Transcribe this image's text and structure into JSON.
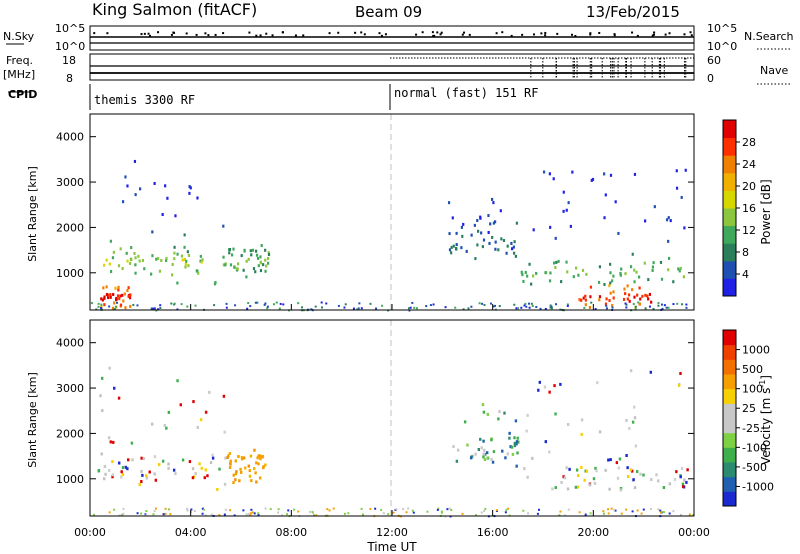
{
  "header": {
    "station": "King Salmon (fitACF)",
    "beam": "Beam 09",
    "date": "13/Feb/2015"
  },
  "top_panels": {
    "nsky_label": "N.Sky",
    "nsky_ticks": [
      "10^5",
      "10^0"
    ],
    "nsearch_label": "N.Search",
    "nsearch_ticks": [
      "10^5",
      "10^0"
    ],
    "freq_label": "Freq.",
    "freq_unit": "[MHz]",
    "freq_ticks": [
      "18",
      "8"
    ],
    "nave_label": "Nave",
    "nave_ticks": [
      "60",
      "0"
    ],
    "cpid_label": "CPID",
    "cpid_segments": [
      {
        "label": "themis 3300 RF",
        "start_hour": 0
      },
      {
        "label": "normal (fast) 151 RF",
        "start_hour": 12
      }
    ]
  },
  "chart_data": [
    {
      "type": "heatmap",
      "title": "Power [dB]",
      "xlabel": "Time UT",
      "ylabel": "Slant Range [km]",
      "xlim": [
        0,
        24
      ],
      "ylim": [
        180,
        4500
      ],
      "xticks": [
        "00:00",
        "04:00",
        "08:00",
        "12:00",
        "16:00",
        "20:00",
        "00:00"
      ],
      "yticks": [
        1000,
        2000,
        3000,
        4000
      ],
      "colorbar": {
        "label": "Power [dB]",
        "ticks": [
          "28",
          "24",
          "20",
          "16",
          "12",
          "8",
          "4"
        ],
        "range": [
          0,
          30
        ],
        "colors": [
          "#2020e6",
          "#1f4fb0",
          "#2a7f5a",
          "#3fa85a",
          "#8cc63f",
          "#d7d700",
          "#f0b000",
          "#f08000",
          "#ff3000",
          "#e00000"
        ]
      },
      "regions": [
        {
          "t0": 0.3,
          "t1": 5.4,
          "r0": 750,
          "r1": 3500,
          "peak": 1250,
          "level": 14
        },
        {
          "t0": 5.3,
          "t1": 7.1,
          "r0": 900,
          "r1": 1700,
          "peak": 1300,
          "level": 12
        },
        {
          "t0": 17.1,
          "t1": 23.7,
          "r0": 750,
          "r1": 3500,
          "peak": 1050,
          "level": 12
        },
        {
          "t0": 14.2,
          "t1": 17.0,
          "r0": 1300,
          "r1": 2700,
          "peak": 1700,
          "level": 6
        },
        {
          "t0": 0.3,
          "t1": 1.6,
          "r0": 430,
          "r1": 560,
          "peak": 500,
          "level": 28
        },
        {
          "t0": 19.3,
          "t1": 22.3,
          "r0": 420,
          "r1": 560,
          "peak": 500,
          "level": 28
        }
      ]
    },
    {
      "type": "heatmap",
      "title": "Velocity [m s^-1]",
      "xlabel": "Time UT",
      "ylabel": "Slant Range [km]",
      "xlim": [
        0,
        24
      ],
      "ylim": [
        180,
        4500
      ],
      "xticks": [
        "00:00",
        "04:00",
        "08:00",
        "12:00",
        "16:00",
        "20:00",
        "00:00"
      ],
      "yticks": [
        1000,
        2000,
        3000,
        4000
      ],
      "colorbar": {
        "label": "Velocity [m s",
        "label_sup": "-1",
        "label_end": "]",
        "ticks": [
          "1000",
          "500",
          "100",
          "25",
          "-25",
          "-100",
          "-500",
          "-1000"
        ],
        "colors": [
          "#1a2ad0",
          "#2060b0",
          "#2c8a6e",
          "#3fae4c",
          "#7ed144",
          "#c8c8c8",
          "#c8c8c8",
          "#f6d000",
          "#f5a000",
          "#f37000",
          "#f04000",
          "#e00000"
        ]
      },
      "regions": [
        {
          "t0": 0.3,
          "t1": 5.4,
          "r0": 750,
          "r1": 3500,
          "peak": 1250,
          "dominant": "grey"
        },
        {
          "t0": 5.4,
          "t1": 7.0,
          "r0": 900,
          "r1": 1700,
          "peak": 1300,
          "dominant": "orange"
        },
        {
          "t0": 14.2,
          "t1": 17.0,
          "r0": 1300,
          "r1": 2700,
          "peak": 1700,
          "dominant": "green"
        },
        {
          "t0": 17.1,
          "t1": 23.7,
          "r0": 750,
          "r1": 3500,
          "peak": 1050,
          "dominant": "grey"
        }
      ]
    }
  ]
}
